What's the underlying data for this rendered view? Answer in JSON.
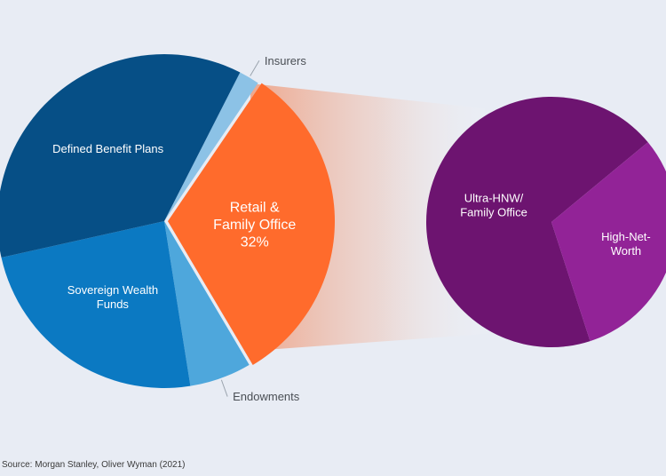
{
  "chart_data": [
    {
      "type": "pie",
      "title": "",
      "slices": [
        {
          "label": "Insurers",
          "value": 2,
          "color": "#8cc2e6",
          "label_position": "outside"
        },
        {
          "label": "Retail & Family Office",
          "value": 32,
          "display_label": [
            "Retail &",
            "Family Office",
            "32%"
          ],
          "color": "#ff6b2c",
          "exploded": true
        },
        {
          "label": "Endowments",
          "value": 6,
          "color": "#4ea7dc",
          "label_position": "outside"
        },
        {
          "label": "Sovereign Wealth Funds",
          "value": 24,
          "display_label": [
            "Sovereign Wealth",
            "Funds"
          ],
          "color": "#0b79c2"
        },
        {
          "label": "Defined Benefit Plans",
          "value": 36,
          "display_label": [
            "Defined Benefit Plans"
          ],
          "color": "#064f86"
        }
      ]
    },
    {
      "type": "pie",
      "title": "",
      "breakdown_of": "Retail & Family Office",
      "slices": [
        {
          "label": "Ultra-HNW/ Family Office",
          "value": 69,
          "display_label": [
            "Ultra-HNW/",
            "Family Office"
          ],
          "color": "#6d1470"
        },
        {
          "label": "High-Net-Worth",
          "value": 31,
          "display_label": [
            "High-Net-",
            "Worth"
          ],
          "color": "#922397"
        }
      ]
    }
  ],
  "source": "Source: Morgan Stanley, Oliver Wyman (2021)"
}
